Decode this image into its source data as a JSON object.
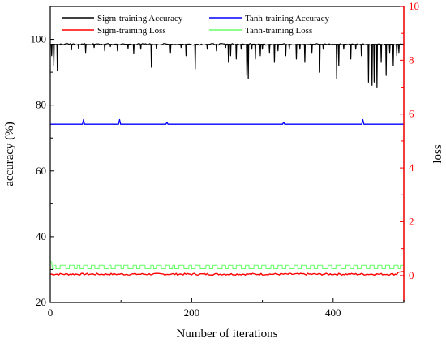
{
  "chart_data": {
    "type": "line",
    "xlabel": "Number of iterations",
    "ylabel_left": "accuracy (%)",
    "ylabel_right": "loss",
    "xlim": [
      0,
      500
    ],
    "ylim_left": [
      20,
      110
    ],
    "ylim_right": [
      -1,
      10
    ],
    "x_ticks": [
      0,
      200,
      400
    ],
    "x_tick_labels": [
      "0",
      "200",
      "400"
    ],
    "y_left_ticks": [
      20,
      40,
      60,
      80,
      100
    ],
    "y_left_tick_labels": [
      "20",
      "40",
      "60",
      "80",
      "100"
    ],
    "y_right_ticks": [
      0,
      2,
      4,
      6,
      8,
      10
    ],
    "y_right_tick_labels": [
      "0",
      "2",
      "4",
      "6",
      "8",
      "10"
    ],
    "grid": false,
    "legend_placement": "top",
    "series": [
      {
        "name": "Sigm-training Accuracy",
        "axis": "left",
        "color": "#000000",
        "base": 98.5,
        "x_range": [
          0,
          500
        ],
        "dips": [
          [
            2,
            95
          ],
          [
            5,
            92
          ],
          [
            10,
            90.5
          ],
          [
            30,
            96.8
          ],
          [
            40,
            97.2
          ],
          [
            50,
            96
          ],
          [
            62,
            97.5
          ],
          [
            77,
            96.5
          ],
          [
            85,
            97.8
          ],
          [
            95,
            96.5
          ],
          [
            110,
            97.2
          ],
          [
            118,
            95.8
          ],
          [
            128,
            97
          ],
          [
            143,
            91.5
          ],
          [
            150,
            97.3
          ],
          [
            170,
            96
          ],
          [
            185,
            97.5
          ],
          [
            192,
            95
          ],
          [
            205,
            91
          ],
          [
            222,
            97
          ],
          [
            235,
            96.5
          ],
          [
            248,
            97.5
          ],
          [
            252,
            93
          ],
          [
            255,
            95
          ],
          [
            263,
            94
          ],
          [
            270,
            97
          ],
          [
            278,
            89
          ],
          [
            280,
            88
          ],
          [
            285,
            97
          ],
          [
            290,
            94
          ],
          [
            297,
            95
          ],
          [
            300,
            97
          ],
          [
            310,
            96
          ],
          [
            317,
            93
          ],
          [
            322,
            96.5
          ],
          [
            333,
            95
          ],
          [
            338,
            97
          ],
          [
            348,
            94
          ],
          [
            353,
            97
          ],
          [
            360,
            93
          ],
          [
            370,
            96
          ],
          [
            381,
            90
          ],
          [
            386,
            97
          ],
          [
            405,
            88
          ],
          [
            408,
            92
          ],
          [
            415,
            97
          ],
          [
            425,
            94
          ],
          [
            432,
            97
          ],
          [
            440,
            95
          ],
          [
            450,
            87
          ],
          [
            455,
            86
          ],
          [
            458,
            87
          ],
          [
            462,
            85.5
          ],
          [
            468,
            93
          ],
          [
            475,
            89
          ],
          [
            480,
            96
          ],
          [
            485,
            92
          ],
          [
            490,
            95
          ],
          [
            493,
            96
          ]
        ]
      },
      {
        "name": "Tanh-training Accuracy",
        "axis": "left",
        "color": "#0000ff",
        "base": 74.2,
        "x_range": [
          0,
          500
        ],
        "spikes": [
          [
            47,
            75.6
          ],
          [
            98,
            75.6
          ],
          [
            165,
            74.8
          ],
          [
            330,
            74.8
          ],
          [
            442,
            75.6
          ]
        ]
      },
      {
        "name": "Sigm-training Loss",
        "axis": "right",
        "color": "#ff0000",
        "base": 0.05,
        "x_range": [
          0,
          500
        ],
        "noise": 0.07,
        "end": [
          [
            492,
            0.12
          ],
          [
            500,
            0.15
          ]
        ]
      },
      {
        "name": "Tanh-training Loss",
        "axis": "right",
        "color": "#66ff66",
        "base": 0.25,
        "x_range": [
          0,
          500
        ],
        "spike_value": 0.38,
        "spike_points": [
          [
            0,
            0.55
          ],
          [
            2,
            0.5
          ]
        ],
        "spike_segments": [
          [
            5,
            8
          ],
          [
            14,
            22
          ],
          [
            27,
            34
          ],
          [
            38,
            42
          ],
          [
            47,
            53
          ],
          [
            58,
            63
          ],
          [
            69,
            76
          ],
          [
            83,
            86
          ],
          [
            92,
            100
          ],
          [
            104,
            110
          ],
          [
            117,
            122
          ],
          [
            127,
            134
          ],
          [
            142,
            146
          ],
          [
            150,
            157
          ],
          [
            163,
            169
          ],
          [
            173,
            176
          ],
          [
            182,
            189
          ],
          [
            196,
            200
          ],
          [
            205,
            212
          ],
          [
            220,
            225
          ],
          [
            230,
            236
          ],
          [
            243,
            248
          ],
          [
            252,
            258
          ],
          [
            263,
            270
          ],
          [
            276,
            281
          ],
          [
            288,
            294
          ],
          [
            299,
            305
          ],
          [
            312,
            316
          ],
          [
            322,
            328
          ],
          [
            333,
            338
          ],
          [
            345,
            350
          ],
          [
            355,
            362
          ],
          [
            368,
            373
          ],
          [
            378,
            385
          ],
          [
            393,
            398
          ],
          [
            404,
            411
          ],
          [
            418,
            424
          ],
          [
            429,
            434
          ],
          [
            440,
            447
          ],
          [
            452,
            458
          ],
          [
            463,
            469
          ],
          [
            474,
            480
          ],
          [
            486,
            492
          ],
          [
            495,
            500
          ]
        ]
      }
    ]
  }
}
